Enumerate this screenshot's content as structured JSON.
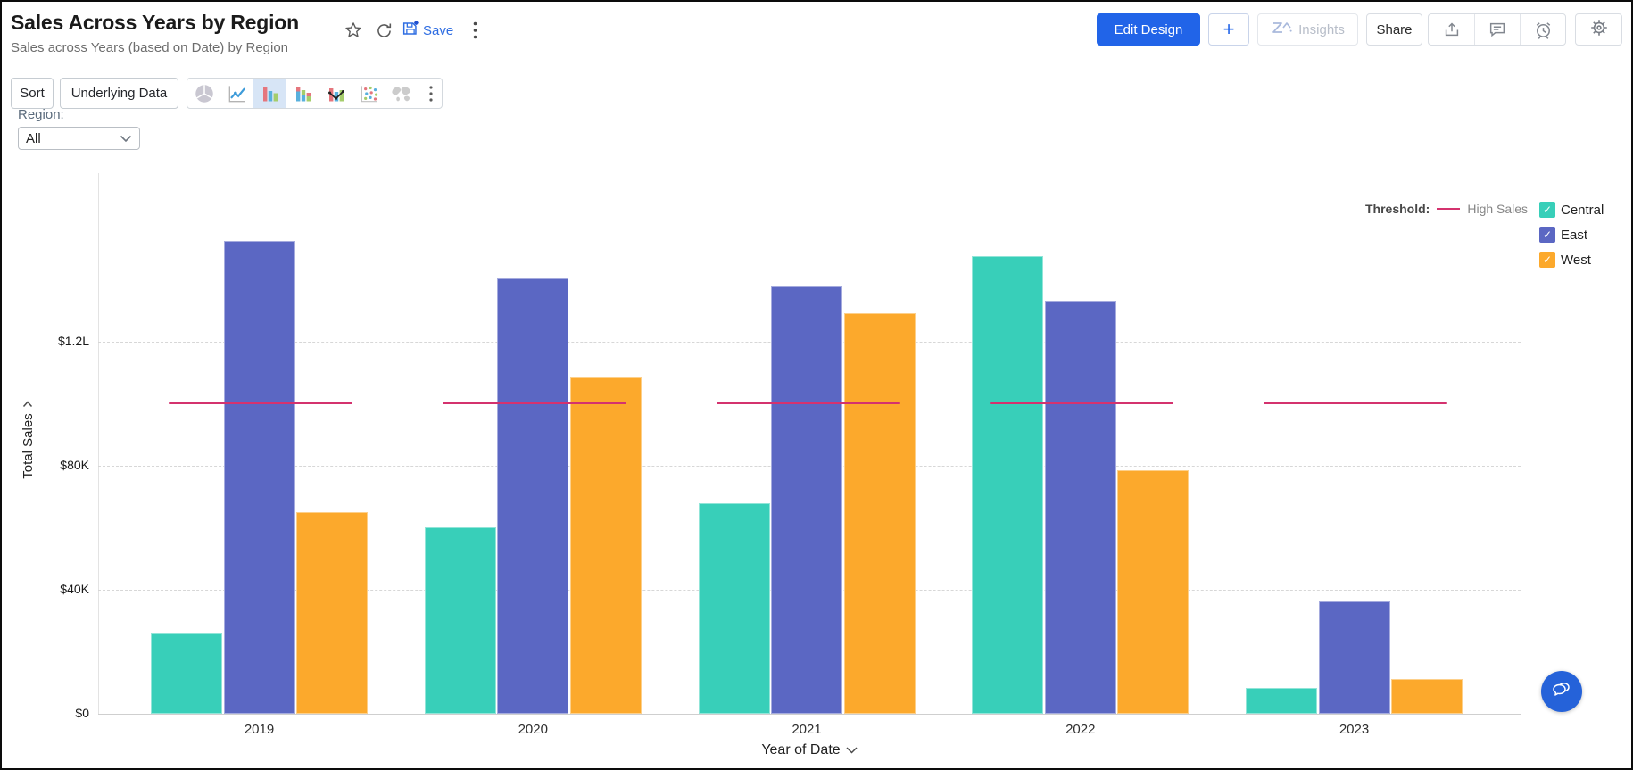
{
  "header": {
    "title": "Sales Across Years by Region",
    "subtitle": "Sales across Years (based on Date) by Region",
    "save_label": "Save",
    "edit_design_label": "Edit Design",
    "plus_label": "+",
    "insights_label": "Insights",
    "share_label": "Share",
    "left_icons": [
      "star",
      "refresh",
      "save",
      "more-vertical"
    ],
    "right_icons": [
      "export",
      "comment",
      "alarm",
      "settings"
    ]
  },
  "toolbar": {
    "sort_label": "Sort",
    "underlying_data_label": "Underlying Data",
    "chart_types": [
      {
        "name": "pie",
        "selected": false
      },
      {
        "name": "line",
        "selected": false
      },
      {
        "name": "bar",
        "selected": true
      },
      {
        "name": "stacked-bar",
        "selected": false
      },
      {
        "name": "bar-line-combo",
        "selected": false
      },
      {
        "name": "scatter",
        "selected": false
      },
      {
        "name": "map",
        "selected": false
      }
    ],
    "more_icon": "more-vertical"
  },
  "filter": {
    "label": "Region:",
    "value": "All"
  },
  "chart_data": {
    "type": "bar",
    "title": "Sales Across Years by Region",
    "categories": [
      "2019",
      "2020",
      "2021",
      "2022",
      "2023"
    ],
    "series": [
      {
        "name": "Central",
        "color": "#38cfb9",
        "values": [
          25900,
          60000,
          67800,
          147400,
          8300
        ]
      },
      {
        "name": "East",
        "color": "#5b67c3",
        "values": [
          152500,
          140400,
          137600,
          133200,
          36300
        ]
      },
      {
        "name": "West",
        "color": "#fca92c",
        "values": [
          65000,
          108300,
          129100,
          78600,
          11200
        ]
      }
    ],
    "threshold": {
      "prefix": "Threshold:",
      "label": "High Sales",
      "value": 100000,
      "color": "#d4326e"
    },
    "xlabel": "Year of Date",
    "ylabel": "Total Sales",
    "y_ticks": [
      {
        "label": "$0",
        "value": 0
      },
      {
        "label": "$40K",
        "value": 40000
      },
      {
        "label": "$80K",
        "value": 80000
      },
      {
        "label": "$1.2L",
        "value": 120000
      }
    ],
    "ylim": [
      0,
      175000
    ],
    "grid": "dashed-horizontal",
    "legend_position": "top-right"
  },
  "fab": {
    "icon": "chat"
  }
}
